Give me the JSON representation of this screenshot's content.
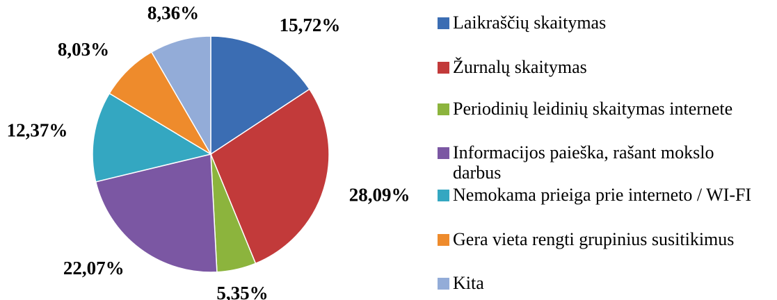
{
  "chart_data": {
    "type": "pie",
    "categories": [
      "Laikraščių skaitymas",
      "Žurnalų skaitymas",
      "Periodinių leidinių skaitymas internete",
      "Informacijos paieška, rašant mokslo darbus",
      "Nemokama prieiga prie interneto / WI-FI",
      "Gera vieta rengti grupinius susitikimus",
      "Kita"
    ],
    "values": [
      15.72,
      28.09,
      5.35,
      22.07,
      12.37,
      8.03,
      8.36
    ],
    "value_labels": [
      "15,72%",
      "28,09%",
      "5,35%",
      "22,07%",
      "12,37%",
      "8,03%",
      "8,36%"
    ],
    "colors": [
      "#3b6db3",
      "#c23a3a",
      "#8cb43d",
      "#7b57a3",
      "#34a7c1",
      "#ee8b2c",
      "#93acd8"
    ],
    "legend": "right"
  }
}
